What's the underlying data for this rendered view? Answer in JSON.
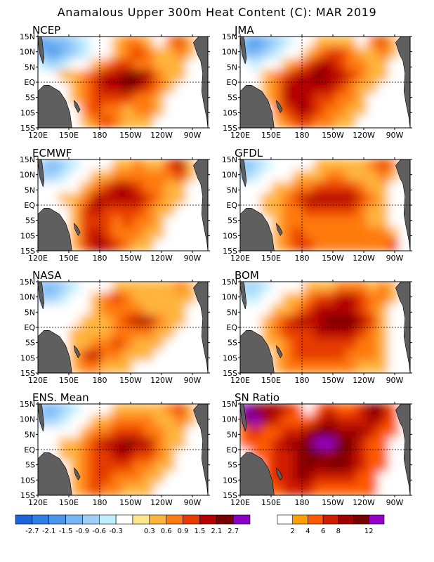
{
  "title": "Anamalous Upper 300m Heat Content (C): MAR 2019",
  "colors": {
    "land": "#5f5f5f",
    "ocean": "#ffffff",
    "frame": "#000000"
  },
  "chart_data": {
    "type": "heatmap",
    "panels": [
      {
        "name": "NCEP",
        "scale": "anomaly"
      },
      {
        "name": "JMA",
        "scale": "anomaly"
      },
      {
        "name": "ECMWF",
        "scale": "anomaly"
      },
      {
        "name": "GFDL",
        "scale": "anomaly"
      },
      {
        "name": "NASA",
        "scale": "anomaly"
      },
      {
        "name": "BOM",
        "scale": "anomaly"
      },
      {
        "name": "ENS. Mean",
        "scale": "anomaly"
      },
      {
        "name": "SN Ratio",
        "scale": "sn"
      }
    ],
    "lon_ticks": [
      "120E",
      "150E",
      "180",
      "150W",
      "120W",
      "90W"
    ],
    "lat_ticks": [
      "15N",
      "10N",
      "5N",
      "EQ",
      "5S",
      "10S",
      "15S"
    ],
    "lon_range_deg_east": [
      120,
      285
    ],
    "lat_range": [
      -15,
      15
    ],
    "reference_lines": [
      "EQ",
      "180"
    ],
    "anomaly_scale": {
      "labels": [
        "-2.7",
        "-2.1",
        "-1.5",
        "-0.9",
        "-0.6",
        "-0.3",
        "0.3",
        "0.6",
        "0.9",
        "1.5",
        "2.1",
        "2.7"
      ],
      "colors": [
        "#1e64dc",
        "#2f7ee6",
        "#4a96ee",
        "#78b7f5",
        "#9ed0fa",
        "#bfeeff",
        "#ffffff",
        "#ffe58c",
        "#ffb43c",
        "#ff7a10",
        "#e63a00",
        "#b40000",
        "#780000",
        "#8c00c8"
      ]
    },
    "sn_scale": {
      "labels": [
        "2",
        "4",
        "6",
        "8",
        "12"
      ],
      "colors": [
        "#ffffff",
        "#ffa000",
        "#ff5a00",
        "#d21e00",
        "#a00000",
        "#780000",
        "#9600c8"
      ]
    },
    "fields": {
      "NCEP": [
        [
          -2.1,
          -1.5,
          -1.5,
          -0.9,
          -0.6,
          -0.3,
          0,
          0.3,
          0.6,
          0.6,
          0.3,
          0,
          0.6,
          0.9,
          0.3,
          0
        ],
        [
          -1.5,
          -2.1,
          -1.5,
          -0.9,
          -0.6,
          -0.3,
          0,
          0.3,
          0.6,
          0.9,
          0.6,
          0.3,
          0.3,
          0.6,
          0.3,
          0
        ],
        [
          -0.6,
          -0.9,
          -0.6,
          -0.3,
          0,
          0.3,
          0.6,
          0.9,
          0.9,
          0.6,
          0.6,
          0.3,
          0.3,
          0.3,
          0,
          0
        ],
        [
          0,
          0,
          0.3,
          0.3,
          0.6,
          0.9,
          1.5,
          1.5,
          2.1,
          2.1,
          1.5,
          0.6,
          0.3,
          0.3,
          0,
          0
        ],
        [
          0,
          0,
          0,
          0.3,
          0.6,
          0.9,
          1.5,
          1.5,
          2.1,
          1.5,
          0.9,
          0.6,
          0.3,
          0,
          0,
          0
        ],
        [
          0,
          0,
          0,
          0.3,
          0.6,
          0.9,
          0.9,
          0.9,
          0.9,
          0.6,
          0.6,
          0.3,
          0,
          0,
          0,
          0
        ],
        [
          0,
          0,
          0,
          0,
          0.6,
          0.9,
          0.6,
          0.6,
          0.3,
          0.6,
          0.6,
          0.3,
          0,
          0,
          0,
          0
        ],
        [
          0,
          0,
          0,
          -0.3,
          0.3,
          0.6,
          0.9,
          0.6,
          0.3,
          0.3,
          0.3,
          0,
          0,
          0,
          0,
          0
        ]
      ],
      "JMA": [
        [
          -1.5,
          -2.1,
          -1.5,
          -0.9,
          -0.6,
          -0.3,
          0,
          0.3,
          0.3,
          0.3,
          0.3,
          0,
          0.6,
          0.9,
          0.3,
          0
        ],
        [
          -1.5,
          -1.5,
          -0.9,
          -0.6,
          -0.3,
          0,
          0.3,
          0.6,
          0.9,
          0.9,
          0.6,
          0.3,
          0.3,
          0.6,
          0.3,
          0
        ],
        [
          -0.3,
          -0.6,
          -0.3,
          0,
          0.3,
          0.6,
          0.9,
          1.5,
          1.5,
          0.9,
          0.6,
          0.6,
          0.3,
          0.3,
          0,
          0
        ],
        [
          0,
          0,
          0.3,
          0.6,
          0.9,
          1.5,
          1.5,
          2.1,
          1.5,
          1.5,
          0.9,
          0.6,
          0.3,
          0.3,
          0,
          0
        ],
        [
          0,
          0,
          0.3,
          0.6,
          1.5,
          1.5,
          1.5,
          1.5,
          1.5,
          0.9,
          0.6,
          0.3,
          0.3,
          0,
          0,
          0
        ],
        [
          0,
          0,
          0.3,
          0.6,
          1.5,
          1.5,
          1.5,
          0.9,
          0.9,
          0.6,
          0.6,
          0.3,
          0,
          0,
          0,
          0
        ],
        [
          0,
          0,
          0,
          0.6,
          0.9,
          1.5,
          1.5,
          0.9,
          0.6,
          0.6,
          0.3,
          0.3,
          0,
          0,
          0,
          0
        ],
        [
          0,
          0,
          0,
          0.3,
          0.6,
          0.9,
          0.9,
          0.6,
          0.6,
          0.3,
          0.3,
          0,
          0,
          0,
          0,
          0
        ]
      ],
      "ECMWF": [
        [
          -0.9,
          -1.5,
          -0.9,
          -0.6,
          -0.3,
          0,
          0,
          0.3,
          0.3,
          0.6,
          0.3,
          0.3,
          0.9,
          1.5,
          0.3,
          0
        ],
        [
          -0.9,
          -0.9,
          -0.6,
          -0.3,
          0,
          0.3,
          0.3,
          0.6,
          0.6,
          0.6,
          0.6,
          0.6,
          0.6,
          0.9,
          0.3,
          0
        ],
        [
          0,
          -0.3,
          0,
          0,
          0.3,
          0.6,
          0.9,
          1.5,
          1.5,
          0.9,
          0.6,
          0.6,
          0.3,
          0.3,
          0,
          0
        ],
        [
          0,
          0,
          0.3,
          0.3,
          0.6,
          1.5,
          1.5,
          1.5,
          1.5,
          1.5,
          0.9,
          0.6,
          0.3,
          0.3,
          0,
          0
        ],
        [
          0,
          0,
          0,
          0.3,
          0.9,
          1.5,
          0.9,
          0.9,
          0.9,
          0.9,
          0.6,
          0.3,
          0.3,
          0,
          0,
          0
        ],
        [
          0,
          0,
          0,
          0.3,
          0.9,
          0.9,
          0.9,
          0.6,
          0.9,
          0.6,
          0.6,
          0.3,
          0,
          0,
          0,
          0
        ],
        [
          0,
          0,
          0,
          0.3,
          0.9,
          1.5,
          0.9,
          0.6,
          0.6,
          0.6,
          0.3,
          0.3,
          0,
          0,
          0,
          0
        ],
        [
          0,
          0,
          0,
          0.3,
          0.9,
          1.5,
          1.5,
          0.9,
          0.6,
          0.3,
          0.3,
          0,
          0,
          0,
          0,
          0
        ]
      ],
      "GFDL": [
        [
          -1.5,
          -0.9,
          -0.6,
          -0.3,
          0,
          0,
          0,
          0.3,
          0.3,
          0.3,
          0.3,
          0.3,
          0.6,
          0.9,
          0.6,
          0
        ],
        [
          -0.9,
          -0.6,
          -0.3,
          0,
          0,
          0.3,
          0.3,
          0.3,
          0.6,
          0.6,
          0.3,
          0.3,
          0.3,
          0.6,
          0.3,
          0
        ],
        [
          0,
          0,
          0,
          0.3,
          0.3,
          0.6,
          0.6,
          0.9,
          0.9,
          0.9,
          0.9,
          0.6,
          0.3,
          0.3,
          0,
          0
        ],
        [
          0,
          0,
          0.3,
          0.3,
          0.6,
          0.9,
          1.5,
          1.5,
          1.5,
          1.5,
          1.5,
          0.9,
          0.6,
          0.3,
          0,
          0
        ],
        [
          0,
          0,
          0.3,
          0.3,
          0.6,
          0.6,
          0.9,
          0.9,
          0.9,
          0.9,
          0.9,
          0.6,
          0.3,
          0.3,
          0,
          0
        ],
        [
          0,
          0,
          0,
          0.3,
          0.6,
          0.6,
          0.6,
          0.6,
          0.6,
          0.6,
          0.6,
          0.6,
          0.3,
          0.3,
          0,
          0
        ],
        [
          0,
          0,
          0,
          0.3,
          0.6,
          0.9,
          0.6,
          0.6,
          0.6,
          0.6,
          0.6,
          0.6,
          0.6,
          0.6,
          0.3,
          0
        ],
        [
          0,
          0,
          0,
          0.3,
          0.6,
          0.9,
          0.9,
          0.6,
          0.6,
          0.6,
          0.6,
          0.6,
          0.6,
          0.6,
          0.9,
          0
        ]
      ],
      "NASA": [
        [
          -1.5,
          -1.5,
          -0.9,
          -0.6,
          -0.3,
          0,
          0,
          0.3,
          0.3,
          0.3,
          0.3,
          0.3,
          0.3,
          0.6,
          0.3,
          0
        ],
        [
          -0.9,
          -0.9,
          -0.6,
          -0.3,
          0,
          0.3,
          0.6,
          0.9,
          0.6,
          0.3,
          0.3,
          0.3,
          0.3,
          0.3,
          0.3,
          0
        ],
        [
          0,
          -0.3,
          0,
          0,
          0,
          0.3,
          0.6,
          0.6,
          0.6,
          0.6,
          0.3,
          0.3,
          0.3,
          0.3,
          0,
          0
        ],
        [
          0,
          0,
          0,
          0,
          0.3,
          0.3,
          0.3,
          0.6,
          0.9,
          1.5,
          1.5,
          0.6,
          0.3,
          0.3,
          0,
          0
        ],
        [
          0,
          0,
          0,
          0.3,
          0.3,
          0.3,
          0.3,
          0.6,
          0.6,
          0.6,
          0.6,
          0.3,
          0.3,
          0,
          0,
          0
        ],
        [
          0,
          0,
          0,
          0.3,
          0.3,
          0.6,
          0.6,
          0.9,
          0.6,
          0.3,
          0.3,
          0.3,
          0,
          0,
          0,
          0
        ],
        [
          0,
          0,
          0,
          0.3,
          0.9,
          1.5,
          0.6,
          0.6,
          0.3,
          0.3,
          0.3,
          0,
          0,
          0,
          0,
          0
        ],
        [
          0,
          0,
          0,
          0.3,
          0.6,
          0.6,
          0.3,
          0.3,
          0.3,
          0,
          0,
          0,
          0,
          0,
          0,
          0
        ]
      ],
      "BOM": [
        [
          -0.9,
          -0.9,
          -0.6,
          -0.3,
          0,
          0,
          0.3,
          0.3,
          0.3,
          0.6,
          0.6,
          0.6,
          0.3,
          0.6,
          0.3,
          0
        ],
        [
          -0.6,
          -0.6,
          -0.3,
          0,
          0.3,
          0.3,
          0.6,
          0.9,
          0.9,
          1.5,
          1.5,
          0.9,
          0.6,
          0.6,
          0.3,
          0
        ],
        [
          0,
          0,
          0,
          0.3,
          0.3,
          0.6,
          0.9,
          1.5,
          1.5,
          1.5,
          1.5,
          0.9,
          0.6,
          0.3,
          0,
          0
        ],
        [
          0,
          0,
          0.3,
          0.6,
          0.9,
          1.5,
          1.5,
          1.5,
          2.1,
          2.1,
          2.1,
          1.5,
          0.9,
          0.3,
          0,
          0
        ],
        [
          0,
          0,
          0.3,
          0.6,
          0.9,
          0.9,
          0.9,
          1.5,
          1.5,
          1.5,
          1.5,
          0.9,
          0.6,
          0.3,
          0,
          0
        ],
        [
          0,
          0,
          0.3,
          0.3,
          0.6,
          0.9,
          0.9,
          0.9,
          0.9,
          0.9,
          0.9,
          0.6,
          0.6,
          0.3,
          0,
          0
        ],
        [
          0,
          0,
          0,
          0.3,
          0.6,
          0.9,
          0.9,
          0.9,
          0.9,
          0.9,
          0.6,
          0.6,
          0.6,
          0.3,
          0,
          0
        ],
        [
          0,
          0,
          0,
          0.3,
          0.6,
          0.6,
          0.6,
          0.6,
          0.6,
          0.6,
          0.6,
          0.3,
          0.3,
          0.3,
          0,
          0
        ]
      ],
      "ENS. Mean": [
        [
          -1.5,
          -1.5,
          -0.9,
          -0.6,
          -0.3,
          0,
          0,
          0.3,
          0.3,
          0.3,
          0.3,
          0.3,
          0.6,
          0.9,
          0.3,
          0
        ],
        [
          -0.9,
          -0.9,
          -0.6,
          -0.3,
          0,
          0.3,
          0.3,
          0.6,
          0.6,
          0.6,
          0.6,
          0.3,
          0.3,
          0.6,
          0.3,
          0
        ],
        [
          0,
          -0.3,
          0,
          0,
          0.3,
          0.6,
          0.6,
          0.9,
          0.9,
          0.9,
          0.6,
          0.6,
          0.3,
          0.3,
          0,
          0
        ],
        [
          0,
          0,
          0.3,
          0.3,
          0.6,
          0.9,
          1.5,
          1.5,
          2.1,
          1.5,
          1.5,
          0.6,
          0.3,
          0.3,
          0,
          0
        ],
        [
          0,
          0,
          0.3,
          0.3,
          0.6,
          0.9,
          0.9,
          1.5,
          1.5,
          0.9,
          0.9,
          0.6,
          0.3,
          0,
          0,
          0
        ],
        [
          0,
          0,
          0,
          0.3,
          0.6,
          0.9,
          0.9,
          0.9,
          0.9,
          0.6,
          0.6,
          0.3,
          0.3,
          0,
          0,
          0
        ],
        [
          0,
          0,
          0,
          0.3,
          0.6,
          0.9,
          0.9,
          0.6,
          0.6,
          0.6,
          0.3,
          0.3,
          0,
          0,
          0,
          0
        ],
        [
          0,
          0,
          0,
          0.3,
          0.6,
          0.9,
          0.6,
          0.6,
          0.3,
          0.3,
          0.3,
          0,
          0,
          0,
          0,
          0
        ]
      ],
      "SN Ratio": [
        [
          12,
          8,
          6,
          6,
          4,
          2,
          0,
          2,
          4,
          2,
          2,
          4,
          8,
          6,
          2,
          0
        ],
        [
          8,
          12,
          6,
          4,
          2,
          2,
          2,
          4,
          6,
          4,
          4,
          4,
          6,
          4,
          2,
          0
        ],
        [
          2,
          4,
          2,
          2,
          4,
          4,
          6,
          8,
          8,
          6,
          6,
          6,
          4,
          2,
          2,
          0
        ],
        [
          2,
          2,
          2,
          4,
          6,
          6,
          8,
          12,
          12,
          8,
          8,
          4,
          2,
          2,
          0,
          0
        ],
        [
          0,
          2,
          2,
          4,
          4,
          6,
          8,
          8,
          6,
          8,
          6,
          4,
          2,
          2,
          0,
          0
        ],
        [
          0,
          0,
          2,
          4,
          4,
          6,
          8,
          6,
          8,
          8,
          6,
          4,
          2,
          2,
          0,
          0
        ],
        [
          0,
          0,
          2,
          4,
          4,
          6,
          6,
          4,
          4,
          4,
          4,
          2,
          2,
          0,
          0,
          0
        ],
        [
          0,
          0,
          2,
          2,
          4,
          4,
          4,
          2,
          2,
          2,
          2,
          2,
          2,
          0,
          0,
          0
        ]
      ]
    }
  }
}
